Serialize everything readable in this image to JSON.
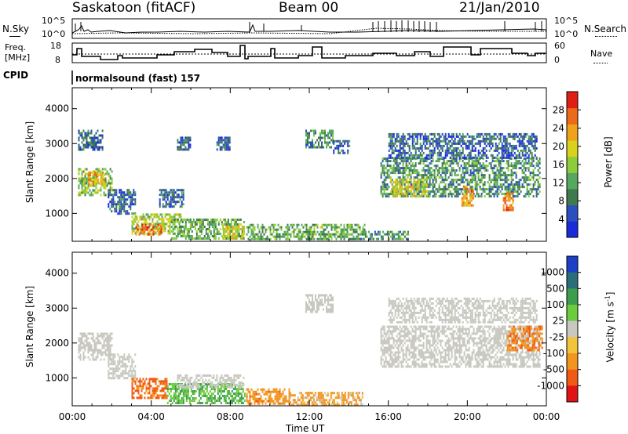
{
  "header": {
    "station": "Saskatoon (fitACF)",
    "beam": "Beam 00",
    "date": "21/Jan/2010"
  },
  "strip": {
    "nsky_label": "N.Sky",
    "nsky_ticks": [
      "10^5",
      "10^0"
    ],
    "nsearch_label": "N.Search",
    "nsearch_ticks": [
      "10^5",
      "10^0"
    ],
    "freq_label_1": "Freq.",
    "freq_label_2": "[MHz]",
    "freq_ticks": [
      "18",
      "8"
    ],
    "nave_label": "Nave",
    "nave_ticks": [
      "60",
      "0"
    ],
    "cpid_label": "CPID",
    "cpid_value": "normalsound (fast) 157"
  },
  "colors": {
    "power_scale": [
      "#1a2bd9",
      "#2a4fbf",
      "#3f7a4f",
      "#56a860",
      "#8dcc3a",
      "#d9d21c",
      "#f0a21a",
      "#ec6a18",
      "#e01e14"
    ],
    "velocity_scale": [
      "#1c3fc8",
      "#2a6e7a",
      "#3d9d4f",
      "#6ccc3d",
      "#c8c8c0",
      "#f2c43a",
      "#f2951e",
      "#f05a12",
      "#e01414"
    ]
  },
  "chart_data": [
    {
      "type": "heatmap",
      "name": "power",
      "ylabel": "Slant Range [km]",
      "yticks": [
        "1000",
        "2000",
        "3000",
        "4000"
      ],
      "ylim": [
        200,
        4600
      ],
      "colorbar_label": "Power [dB]",
      "colorbar_ticks": [
        "4",
        "8",
        "12",
        "16",
        "20",
        "24",
        "28"
      ],
      "colorbar_range": [
        0,
        30
      ],
      "xlim": [
        0,
        24
      ],
      "xticks": [
        "00:00",
        "04:00",
        "08:00",
        "12:00",
        "16:00",
        "20:00",
        "00:00"
      ],
      "regions": [
        {
          "t0": 0.3,
          "t1": 2.0,
          "r0": 1550,
          "r1": 2300,
          "v": 14
        },
        {
          "t0": 0.8,
          "t1": 1.6,
          "r0": 1800,
          "r1": 2200,
          "v": 22
        },
        {
          "t0": 0.3,
          "t1": 1.5,
          "r0": 2800,
          "r1": 3400,
          "v": 6
        },
        {
          "t0": 1.8,
          "t1": 3.2,
          "r0": 1000,
          "r1": 1700,
          "v": 6
        },
        {
          "t0": 3.0,
          "t1": 5.5,
          "r0": 400,
          "r1": 1000,
          "v": 16
        },
        {
          "t0": 3.2,
          "t1": 4.5,
          "r0": 400,
          "r1": 700,
          "v": 24
        },
        {
          "t0": 5.0,
          "t1": 8.7,
          "r0": 300,
          "r1": 850,
          "v": 12
        },
        {
          "t0": 7.6,
          "t1": 8.7,
          "r0": 300,
          "r1": 650,
          "v": 18
        },
        {
          "t0": 4.4,
          "t1": 5.6,
          "r0": 1200,
          "r1": 1700,
          "v": 6
        },
        {
          "t0": 5.3,
          "t1": 6.0,
          "r0": 2800,
          "r1": 3200,
          "v": 6
        },
        {
          "t0": 7.3,
          "t1": 8.0,
          "r0": 2800,
          "r1": 3200,
          "v": 6
        },
        {
          "t0": 8.8,
          "t1": 14.8,
          "r0": 250,
          "r1": 700,
          "v": 12
        },
        {
          "t0": 11.8,
          "t1": 13.2,
          "r0": 2900,
          "r1": 3400,
          "v": 10
        },
        {
          "t0": 13.2,
          "t1": 14.0,
          "r0": 2700,
          "r1": 3100,
          "v": 6
        },
        {
          "t0": 15.6,
          "t1": 23.7,
          "r0": 1500,
          "r1": 2600,
          "v": 10
        },
        {
          "t0": 16.1,
          "t1": 18.0,
          "r0": 1500,
          "r1": 2000,
          "v": 18
        },
        {
          "t0": 19.7,
          "t1": 20.3,
          "r0": 1200,
          "r1": 1800,
          "v": 22
        },
        {
          "t0": 21.8,
          "t1": 22.3,
          "r0": 1100,
          "r1": 1600,
          "v": 24
        },
        {
          "t0": 16.0,
          "t1": 23.5,
          "r0": 2600,
          "r1": 3300,
          "v": 6
        },
        {
          "t0": 14.5,
          "t1": 17.0,
          "r0": 250,
          "r1": 500,
          "v": 10
        }
      ]
    },
    {
      "type": "heatmap",
      "name": "velocity",
      "ylabel": "Slant Range [km]",
      "yticks": [
        "1000",
        "2000",
        "3000",
        "4000"
      ],
      "ylim": [
        200,
        4600
      ],
      "colorbar_label": "Velocity [m s^-1]",
      "colorbar_ticks": [
        "1000",
        "500",
        "100",
        "25",
        "-25",
        "-100",
        "-500",
        "-1000"
      ],
      "colorbar_range": [
        -1000,
        1000
      ],
      "xlim": [
        0,
        24
      ],
      "xticks": [
        "00:00",
        "04:00",
        "08:00",
        "12:00",
        "16:00",
        "20:00",
        "00:00"
      ],
      "xlabel": "Time UT",
      "regions": [
        {
          "t0": 0.3,
          "t1": 2.0,
          "r0": 1550,
          "r1": 2300,
          "v": 0
        },
        {
          "t0": 1.8,
          "t1": 3.2,
          "r0": 1000,
          "r1": 1700,
          "v": 0
        },
        {
          "t0": 3.0,
          "t1": 4.8,
          "r0": 400,
          "r1": 1000,
          "v": -350
        },
        {
          "t0": 4.8,
          "t1": 8.7,
          "r0": 300,
          "r1": 850,
          "v": 60
        },
        {
          "t0": 5.3,
          "t1": 8.7,
          "r0": 700,
          "r1": 1100,
          "v": 0
        },
        {
          "t0": 8.8,
          "t1": 11.0,
          "r0": 250,
          "r1": 700,
          "v": -200
        },
        {
          "t0": 11.0,
          "t1": 14.8,
          "r0": 250,
          "r1": 600,
          "v": -120
        },
        {
          "t0": 11.8,
          "t1": 13.2,
          "r0": 2900,
          "r1": 3400,
          "v": 0
        },
        {
          "t0": 15.6,
          "t1": 23.7,
          "r0": 1300,
          "r1": 2500,
          "v": 0
        },
        {
          "t0": 22.0,
          "t1": 23.8,
          "r0": 1800,
          "r1": 2500,
          "v": -250
        },
        {
          "t0": 16.0,
          "t1": 23.5,
          "r0": 2600,
          "r1": 3300,
          "v": 0
        }
      ]
    }
  ],
  "power_panel_label": "Power [dB]",
  "velocity_panel_label": "Velocity [m s",
  "velocity_panel_sup": "-1",
  "velocity_panel_tail": "]"
}
